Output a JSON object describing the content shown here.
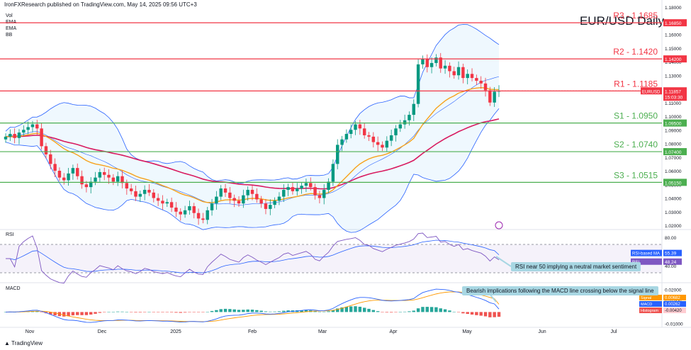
{
  "header": {
    "publisher": "IronFXResearch published on TradingView.com, May 14, 2025 09:56 UTC+3"
  },
  "indicator_names": [
    "Vol",
    "EMA",
    "EMA",
    "BB"
  ],
  "title": "EUR/USD Daily",
  "logo_text": "TradingView",
  "colors": {
    "up": "#089981",
    "down": "#f23645",
    "resistance": "#f23645",
    "support": "#4caf50",
    "ema_fast": "#f7a21b",
    "ema_slow": "#d81b60",
    "bb": "#2962ff",
    "rsi": "#7e57c2",
    "rsi_ma": "#2962ff",
    "macd": "#2962ff",
    "signal": "#ff9800",
    "annotation_bg": "#a8d7e3"
  },
  "chart_data": [
    {
      "type": "candlestick",
      "title": "EUR/USD Daily",
      "ylim": [
        1.02,
        1.18
      ],
      "y_ticks": [
        "1.18000",
        "1.17000",
        "1.16000",
        "1.15000",
        "1.14000",
        "1.13000",
        "1.12000",
        "1.11000",
        "1.10000",
        "1.09000",
        "1.08000",
        "1.07000",
        "1.06000",
        "1.05000",
        "1.04000",
        "1.03000",
        "1.02000"
      ],
      "x_ticks": [
        "Nov",
        "Dec",
        "2025",
        "Feb",
        "Mar",
        "Apr",
        "May",
        "Jun",
        "Jul"
      ],
      "levels": [
        {
          "name": "R3",
          "label": "R3 - 1.1685",
          "value": 1.1685,
          "tag": "1.16850",
          "type": "resistance"
        },
        {
          "name": "R2",
          "label": "R2 - 1.1420",
          "value": 1.142,
          "tag": "1.14200",
          "type": "resistance"
        },
        {
          "name": "R1",
          "label": "R1 - 1.1185",
          "value": 1.1185,
          "tag": "1.11850",
          "type": "resistance"
        },
        {
          "name": "S1",
          "label": "S1 - 1.0950",
          "value": 1.095,
          "tag": "1.09500",
          "type": "support"
        },
        {
          "name": "S2",
          "label": "S2 - 1.0740",
          "value": 1.074,
          "tag": "1.07400",
          "type": "support"
        },
        {
          "name": "S3",
          "label": "S3 - 1.0515",
          "value": 1.0515,
          "tag": "1.05150",
          "type": "support"
        }
      ],
      "price_tag": {
        "symbol": "EURUSD",
        "price": "1.11857",
        "countdown": "15:03:30"
      },
      "close_prices": [
        1.085,
        1.087,
        1.084,
        1.088,
        1.09,
        1.092,
        1.094,
        1.091,
        1.078,
        1.072,
        1.065,
        1.06,
        1.055,
        1.053,
        1.058,
        1.062,
        1.056,
        1.05,
        1.048,
        1.052,
        1.055,
        1.059,
        1.057,
        1.055,
        1.052,
        1.056,
        1.051,
        1.047,
        1.045,
        1.041,
        1.043,
        1.046,
        1.044,
        1.04,
        1.038,
        1.036,
        1.037,
        1.033,
        1.03,
        1.028,
        1.031,
        1.034,
        1.029,
        1.025,
        1.024,
        1.031,
        1.036,
        1.041,
        1.047,
        1.044,
        1.04,
        1.038,
        1.036,
        1.042,
        1.046,
        1.043,
        1.039,
        1.036,
        1.032,
        1.035,
        1.038,
        1.041,
        1.046,
        1.048,
        1.045,
        1.047,
        1.049,
        1.051,
        1.048,
        1.042,
        1.04,
        1.046,
        1.052,
        1.065,
        1.079,
        1.083,
        1.087,
        1.09,
        1.094,
        1.091,
        1.086,
        1.085,
        1.081,
        1.079,
        1.077,
        1.082,
        1.086,
        1.091,
        1.094,
        1.097,
        1.101,
        1.109,
        1.138,
        1.142,
        1.136,
        1.139,
        1.143,
        1.135,
        1.137,
        1.133,
        1.13,
        1.136,
        1.128,
        1.131,
        1.128,
        1.126,
        1.124,
        1.119,
        1.11,
        1.118,
        1.1186
      ],
      "ema_fast_last": 1.109,
      "ema_slow_last": 1.092,
      "bb_upper_last": 1.15,
      "bb_lower_last": 1.087
    },
    {
      "type": "line",
      "name": "RSI",
      "ylim": [
        20,
        80
      ],
      "y_ticks": [
        "80.00",
        "40.00"
      ],
      "series": [
        {
          "name": "RSI-based MA",
          "last": 55.39,
          "last_label": "55.39"
        },
        {
          "name": "RSI",
          "last": 48.24,
          "last_label": "48.24"
        }
      ],
      "bands": [
        70,
        30
      ]
    },
    {
      "type": "line",
      "name": "MACD",
      "ylim": [
        -0.011,
        0.024
      ],
      "y_ticks": [
        "0.02000",
        "0.01000",
        "-0.01000"
      ],
      "series": [
        {
          "name": "Signal",
          "last": 0.00682,
          "last_label": "0.00682"
        },
        {
          "name": "MACD",
          "last": 0.00262,
          "last_label": "0.00262"
        },
        {
          "name": "Histogram",
          "last": -0.0042,
          "last_label": "-0.00420"
        }
      ]
    }
  ],
  "annotations": {
    "rsi": "RSI near 50 implying a neutral market sentiment",
    "macd": "Bearish implications following the MACD line crossing below the signal line"
  },
  "pane_labels": {
    "rsi": "RSI",
    "macd": "MACD"
  }
}
